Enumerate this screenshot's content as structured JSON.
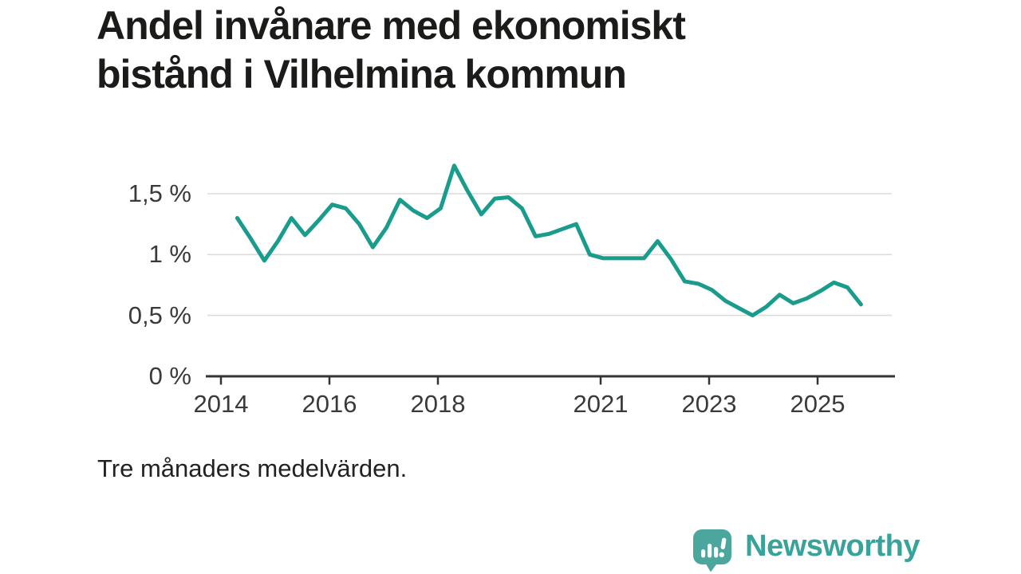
{
  "chart_data": {
    "type": "line",
    "title": "Andel invånare med ekonomiskt bistånd i Vilhelmina kommun",
    "note": "Tre månaders medelvärden.",
    "grid": true,
    "legend": "none",
    "ylim": [
      0,
      1.75
    ],
    "xlim": [
      2013.75,
      2026.4
    ],
    "x_start": 2014.3,
    "x_step": 0.25,
    "yticks": [
      {
        "value": 0,
        "label": "0 %"
      },
      {
        "value": 0.5,
        "label": "0,5 %"
      },
      {
        "value": 1,
        "label": "1 %"
      },
      {
        "value": 1.5,
        "label": "1,5 %"
      }
    ],
    "xticks": [
      {
        "value": 2014,
        "label": "2014"
      },
      {
        "value": 2016,
        "label": "2016"
      },
      {
        "value": 2018,
        "label": "2018"
      },
      {
        "value": 2021,
        "label": "2021"
      },
      {
        "value": 2023,
        "label": "2023"
      },
      {
        "value": 2025,
        "label": "2025"
      }
    ],
    "values": [
      1.3,
      1.13,
      0.95,
      1.11,
      1.3,
      1.16,
      1.28,
      1.41,
      1.38,
      1.25,
      1.06,
      1.22,
      1.45,
      1.36,
      1.3,
      1.38,
      1.73,
      1.52,
      1.33,
      1.46,
      1.47,
      1.38,
      1.15,
      1.17,
      1.21,
      1.25,
      1.0,
      0.97,
      0.97,
      0.97,
      0.97,
      1.11,
      0.96,
      0.78,
      0.76,
      0.71,
      0.62,
      0.56,
      0.5,
      0.57,
      0.67,
      0.6,
      0.64,
      0.7,
      0.77,
      0.73,
      0.59
    ],
    "unit": "%",
    "line_color": "#199c8c",
    "grid_color": "#dcdcdc",
    "axis_color": "#333333"
  },
  "logo": {
    "text": "Newsworthy",
    "mark_color": "#4ba69d",
    "text_color": "#38a39b"
  }
}
